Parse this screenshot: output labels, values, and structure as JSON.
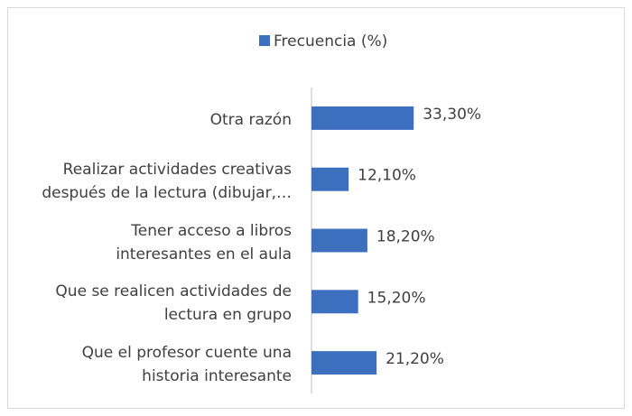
{
  "chart_data": {
    "type": "bar",
    "orientation": "horizontal",
    "legend": "top",
    "series": [
      {
        "name": "Frecuencia (%)",
        "color": "#3d6fbf",
        "values": [
          33.3,
          12.1,
          18.2,
          15.2,
          21.2
        ],
        "value_labels": [
          "33,30%",
          "12,10%",
          "18,20%",
          "15,20%",
          "21,20%"
        ]
      }
    ],
    "categories": [
      "Otra razón",
      "Realizar actividades creativas\ndespués de la lectura (dibujar,…",
      "Tener acceso a libros\ninteresantes en el aula",
      "Que se realicen actividades de\nlectura en grupo",
      "Que el profesor cuente una\nhistoria interesante"
    ],
    "xlim": [
      0,
      40
    ]
  }
}
